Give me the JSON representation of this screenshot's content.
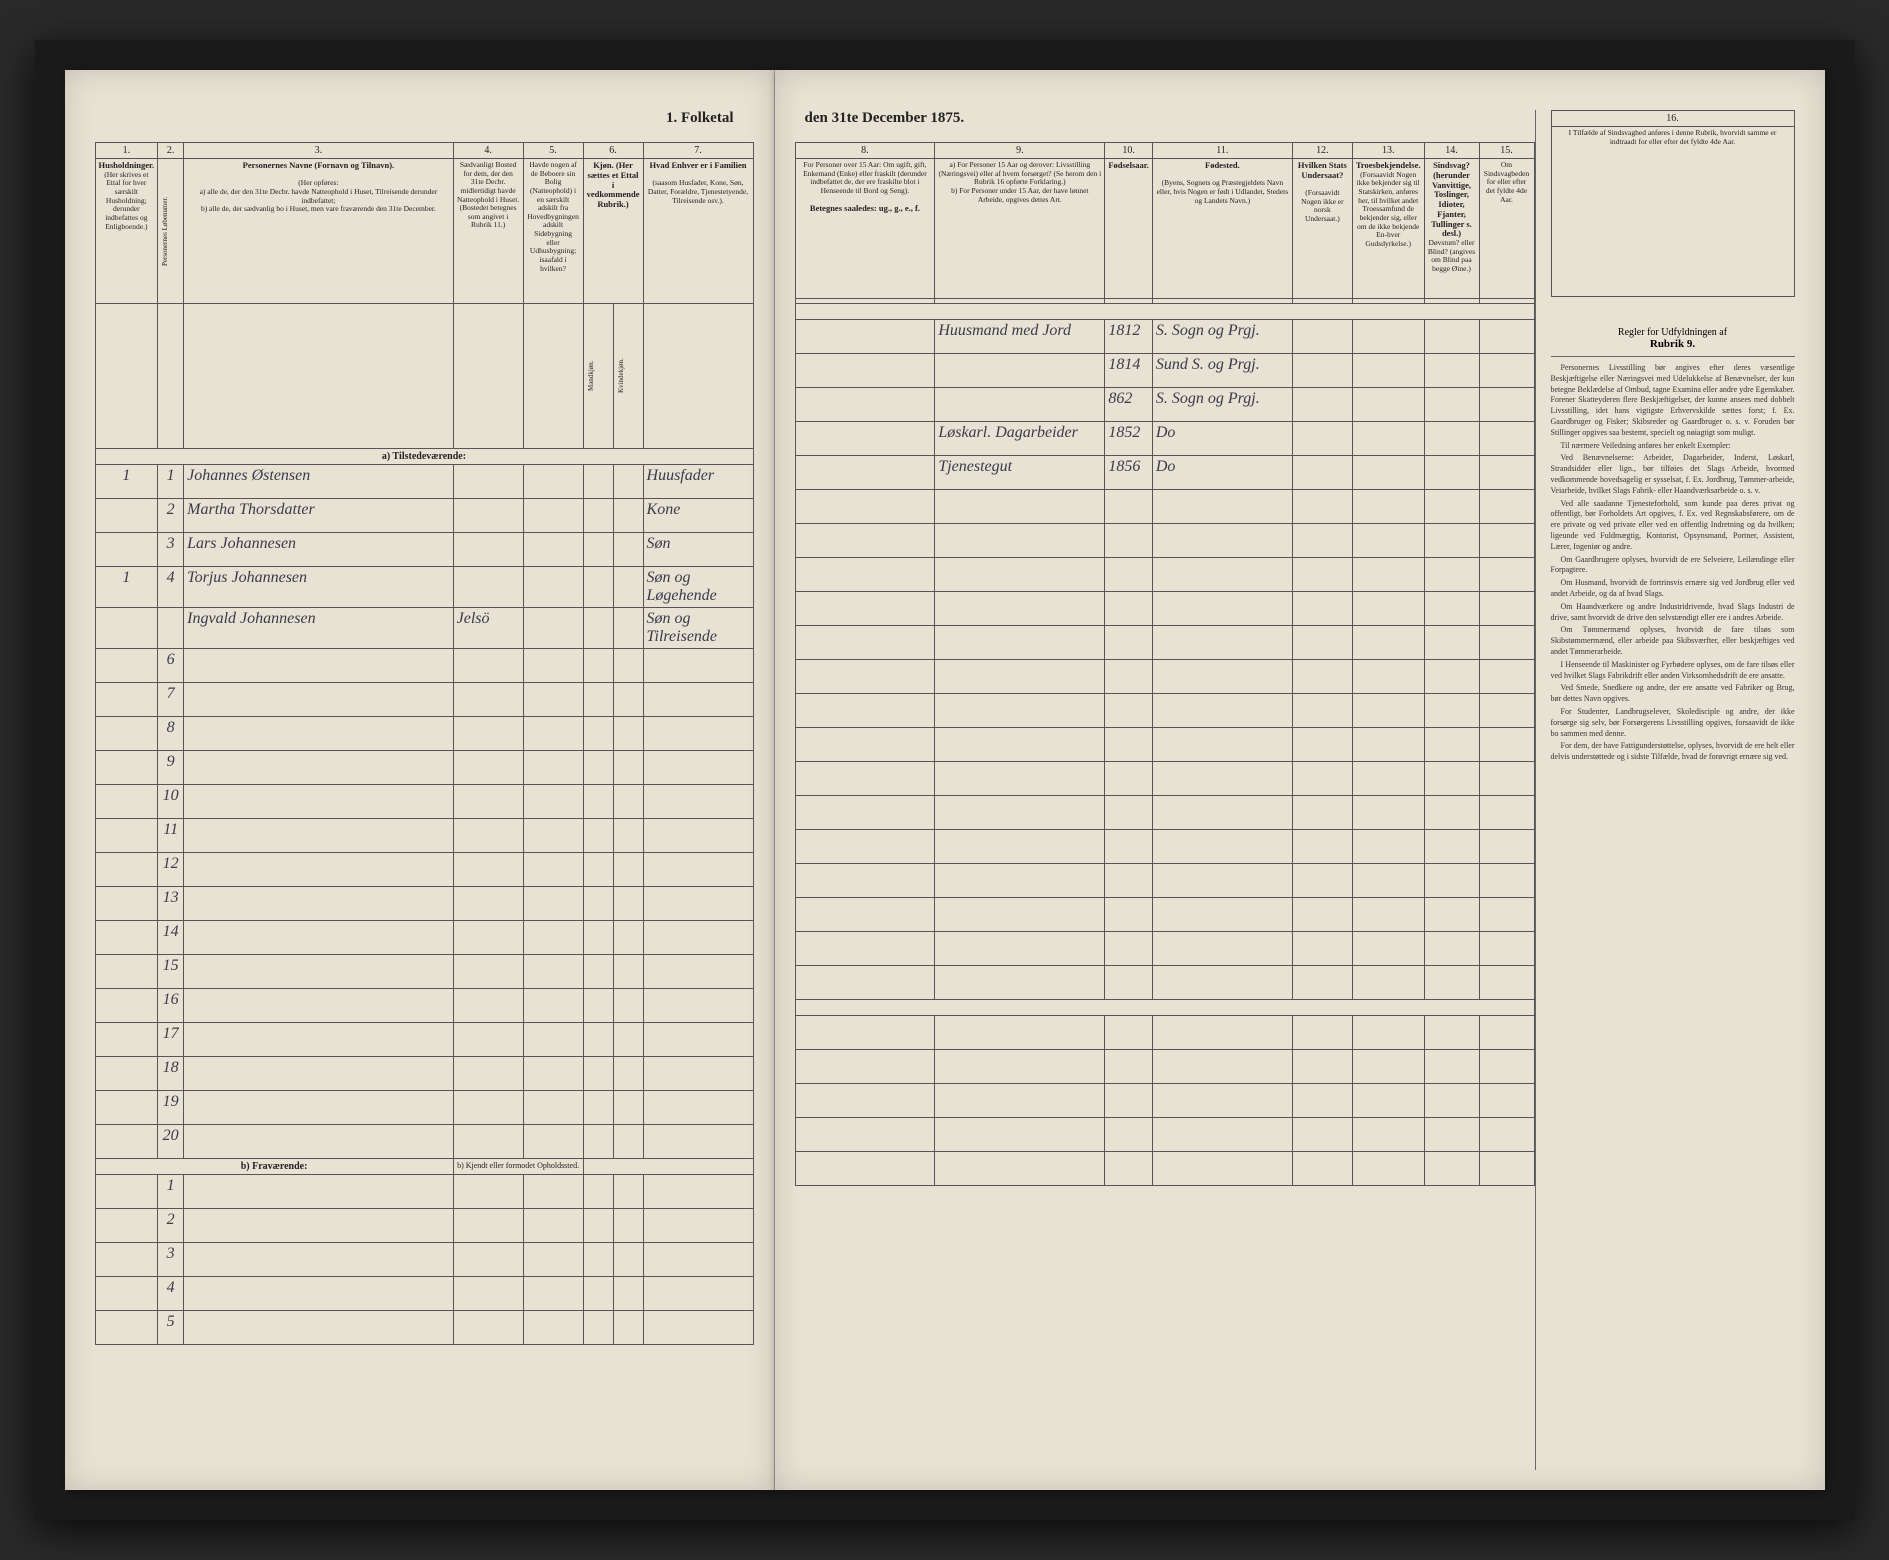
{
  "doc_title_left": "1. Folketal",
  "doc_title_right": "den 31te December 1875.",
  "columns": {
    "c1": "1.",
    "c2": "2.",
    "c3": "3.",
    "c4": "4.",
    "c5": "5.",
    "c6": "6.",
    "c7": "7.",
    "c8": "8.",
    "c9": "9.",
    "c10": "10.",
    "c11": "11.",
    "c12": "12.",
    "c13": "13.",
    "c14": "14.",
    "c15": "15.",
    "c16": "16."
  },
  "headers": {
    "h1": "Husholdninger.",
    "h1_sub": "(Her skrives et Ettal for hver særskilt Husholdning; derunder indbefattes og Enligboende.)",
    "h2": "Personernes Løbenumer.",
    "h3": "Personernes Navne (Fornavn og Tilnavn).",
    "h3_sub": "(Her opføres:\na) alle de, der den 31te Decbr. havde Natteophold i Huset, Tilreisende derunder indbefattet;\nb) alle de, der sædvanlig bo i Huset, men vare fraværende den 31te December.",
    "h4": "Sædvanligt Bosted for dem, der den 31te Decbr. midlertidigt havde Natteophold i Huset. (Bostedet betegnes som angivet i Rubrik 11.)",
    "h5": "Havde nogen af de Beboere sin Bolig (Natteophold) i en særskilt adskilt fra Hovedbygningen adskilt Sidebygning eller Udhusbygning; isaafald i hvilken?",
    "h6": "Kjøn. (Her sættes et Ettal i vedkommende Rubrik.)",
    "h6a": "Mandkjøn.",
    "h6b": "Kvindekjøn.",
    "h7": "Hvad Enhver er i Familien",
    "h7_sub": "(saasom Husfader, Kone, Søn, Datter, Forældre, Tjenestetyende, Tilreisende osv.).",
    "h8": "For Personer over 15 Aar: Om ugift, gift, Enkemand (Enke) eller fraskilt (derunder indbefattet de, der ere fraskilte blot i Henseende til Bord og Seng).",
    "h8_sub": "Betegnes saaledes: ug., g., e., f.",
    "h9": "a) For Personer 15 Aar og derover: Livsstilling (Næringsvei) eller af hvem forsørget? (Se herom den i Rubrik 16 opførte Forklaring.)\nb) For Personer under 15 Aar, der have lønnet Arbeide, opgives dettes Art.",
    "h10": "Fødselsaar.",
    "h11": "Fødested.",
    "h11_sub": "(Byens, Sognets og Præstegjeldets Navn eller, hvis Nogen er født i Udlandet, Stedets og Landets Navn.)",
    "h12": "Hvilken Stats Undersaat?",
    "h12_sub": "(Forsaavidt Nogen ikke er norsk Undersaat.)",
    "h13": "Troesbekjendelse.",
    "h13_sub": "(Forsaavidt Nogen ikke bekjender sig til Statskirken, anføres her, til hvilket andet Troessamfund de bekjender sig, eller om de ikke bekjende En-hver Gudsdyrkelse.)",
    "h14": "Sindsvag? (herunder Vanvittige, Toslinger, Idioter, Fjanter, Tullinger s. desl.)",
    "h14_sub": "Døvstum? eller Blind? (angives om Blind paa begge Øine.)",
    "h15": "Om Sindsvagbeden for eller efter det fyldte 4de Aar.",
    "h16": "I Tilfælde af Sindsvaghed anføres i denne Rubrik, hvorvidt samme er indtraadt for eller efter det fyldte 4de Aar."
  },
  "sections": {
    "a": "a) Tilstedeværende:",
    "b": "b) Fraværende:",
    "b_right": "b) Kjendt eller formodet Opholdssted."
  },
  "rows": [
    {
      "n": "1",
      "p": "1",
      "name": "Johannes Østensen",
      "c4": "",
      "c5": "",
      "c7": "Huusfader",
      "c8": "",
      "c9": "Huusmand med Jord",
      "c10": "1812",
      "c11": "S. Sogn og Prgj."
    },
    {
      "n": "",
      "p": "2",
      "name": "Martha Thorsdatter",
      "c4": "",
      "c5": "",
      "c7": "Kone",
      "c8": "",
      "c9": "",
      "c10": "1814",
      "c11": "Sund S. og Prgj."
    },
    {
      "n": "",
      "p": "3",
      "name": "Lars Johannesen",
      "c4": "",
      "c5": "",
      "c7": "Søn",
      "c8": "",
      "c9": "",
      "c10": "862",
      "c11": "S. Sogn og Prgj."
    },
    {
      "n": "1",
      "p": "4",
      "name": "Torjus Johannesen",
      "c4": "",
      "c5": "",
      "c7": "Søn og Løgehende",
      "c8": "",
      "c9": "Løskarl. Dagarbeider",
      "c10": "1852",
      "c11": "Do"
    },
    {
      "n": "",
      "p": "",
      "name": "Ingvald Johannesen",
      "c4": "Jelsö",
      "c5": "",
      "c7": "Søn og Tilreisende",
      "c8": "",
      "c9": "Tjenestegut",
      "c10": "1856",
      "c11": "Do"
    }
  ],
  "sidebar": {
    "title": "Regler for Udfyldningen af",
    "title_b": "Rubrik 9.",
    "paras": [
      "Personernes Livsstilling bør angives efter deres væsentlige Beskjæftigelse eller Næringsvei med Udelukkelse af Benævnelser, der kun betegne Beklædelse af Ombud, tagne Examina eller andre ydre Egenskaber. Forener Skatteyderen flere Beskjæftigelser, der kunne ansees med dobbelt Livsstilling, idet hans vigtigste Erhvervskilde sættes forst; f. Ex. Gaardbruger og Fisker; Skibsreder og Gaardbruger o. s. v. Foruden bør Stillinger opgives saa bestemt, specielt og nøiagtigt som muligt.",
      "Til nærmere Veiledning anføres her enkelt Exempler:",
      "Ved Benævnelserne: Arbeider, Dagarbeider, Inderst, Løskarl, Strandsidder eller lign., bør tilføies det Slags Arbeide, hvormed vedkommende hovedsagelig er sysselsat, f. Ex. Jordbrug, Tømmer-arbeide, Veiarbeide, hvilket Slags Fabrik- eller Haandværksarbeide o. s. v.",
      "Ved alle saadanne Tjenesteforhold, som kunde paa deres privat og offentligt, bør Forholdets Art opgives, f. Ex. ved Regnskabsførere, om de ere private og ved private eller ved en offentlig Indretning og da hvilken; ligeunde ved Fuldmægtig, Kontorist, Opsynsmand, Portner, Assistent, Lærer, Ingeniør og andre.",
      "Om Gaardbrugere oplyses, hvorvidt de ere Selveiere, Leilændinge eller Forpagtere.",
      "Om Husmand, hvorvidt de fortrinsvis ernære sig ved Jordbrug eller ved andet Arbeide, og da af hvad Slags.",
      "Om Haandværkere og andre Industridrivende, hvad Slags Industri de drive, samt hvorvidt de drive den selvstændigt eller ere i andres Arbeide.",
      "Om Tømmermænd oplyses, hvorvidt de fare tilsøs som Skibstømmermænd, eller arbeide paa Skibsværfter, eller beskjæftiges ved andet Tømmerarbeide.",
      "I Henseende til Maskinister og Fyrbødere oplyses, om de fare tilsøs eller ved hvilket Slags Fabrikdrift eller anden Virksomhedsdrift de ere ansatte.",
      "Ved Smede, Snedkere og andre, der ere ansatte ved Fabriker og Brug, bør dettes Navn opgives.",
      "For Studenter, Landbrugselever, Skoledisciple og andre, der ikke forsørge sig selv, bør Forsørgerens Livsstilling opgives, forsaavidt de ikke bo sammen med denne.",
      "For dem, der have Fattigunderstøttelse, oplyses, hvorvidt de ere helt eller delvis understøttede og i sidste Tilfælde, hvad de forøvrigt ernære sig ved."
    ]
  }
}
